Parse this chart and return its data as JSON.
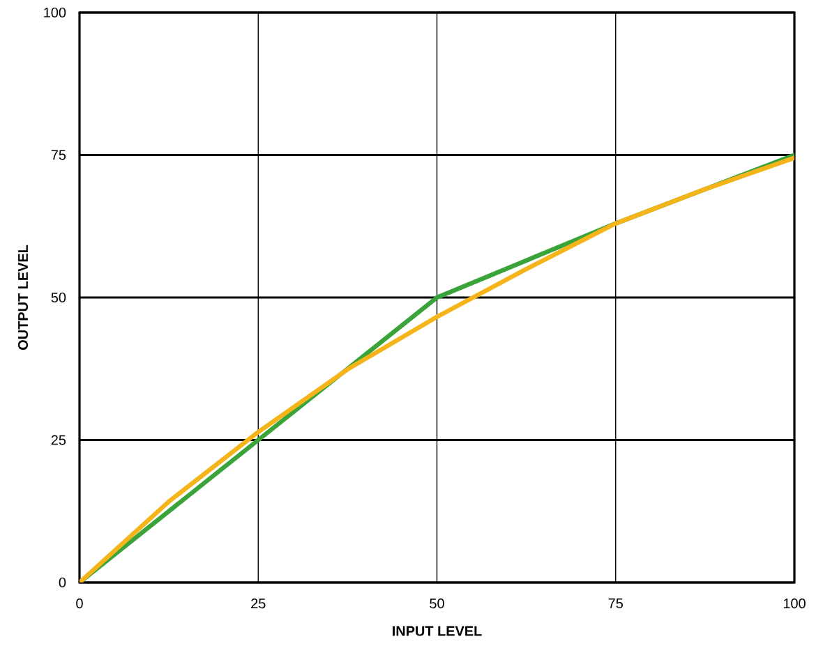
{
  "chart_data": {
    "type": "line",
    "xlabel": "INPUT LEVEL",
    "ylabel": "OUTPUT LEVEL",
    "xlim": [
      0,
      100
    ],
    "ylim": [
      0,
      100
    ],
    "xticks": [
      0,
      25,
      50,
      75,
      100
    ],
    "yticks": [
      0,
      25,
      50,
      75,
      100
    ],
    "grid": true,
    "marker": "none",
    "line_style": "solid",
    "series": [
      {
        "color": "#3aa33a",
        "x": [
          0,
          50,
          75,
          100
        ],
        "values": [
          0,
          50,
          63,
          75
        ]
      },
      {
        "color": "#f5b41a",
        "x": [
          0,
          12.5,
          25,
          37.5,
          50,
          62.5,
          75,
          87.5,
          100
        ],
        "values": [
          0,
          14.2,
          26.4,
          37.4,
          46.6,
          55,
          63,
          69,
          74.5
        ]
      }
    ]
  }
}
